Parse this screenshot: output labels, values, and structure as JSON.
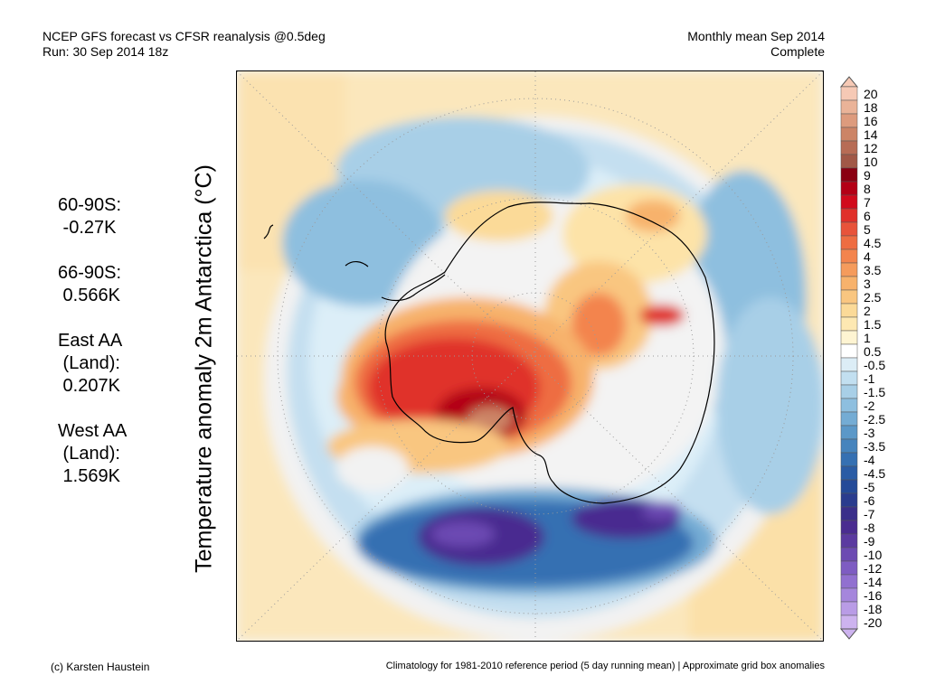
{
  "header": {
    "line1": "NCEP GFS forecast vs CFSR reanalysis @0.5deg",
    "line2": "Run: 30 Sep 2014 18z",
    "right1": "Monthly mean Sep 2014",
    "right2": "Complete"
  },
  "stats": [
    {
      "label": "60-90S:",
      "value": " -0.27K"
    },
    {
      "label": "66-90S:",
      "value": " 0.566K"
    },
    {
      "label": "East AA",
      "label2": " (Land):",
      "value": " 0.207K"
    },
    {
      "label": "West AA",
      "label2": " (Land):",
      "value": " 1.569K"
    }
  ],
  "chart_data": {
    "type": "heatmap",
    "projection": "south polar stereographic",
    "ylabel": "Temperature anomaly 2m Antarctica (°C)",
    "colorbar": {
      "labels": [
        "20",
        "18",
        "16",
        "14",
        "12",
        "10",
        "9",
        "8",
        "7",
        "6",
        "5",
        "4.5",
        "4",
        "3.5",
        "3",
        "2.5",
        "2",
        "1.5",
        "1",
        "0.5",
        "-0.5",
        "-1",
        "-1.5",
        "-2",
        "-2.5",
        "-3",
        "-3.5",
        "-4",
        "-4.5",
        "-5",
        "-6",
        "-7",
        "-8",
        "-9",
        "-10",
        "-12",
        "-14",
        "-16",
        "-18",
        "-20"
      ],
      "colors": [
        "#f6c9b5",
        "#eab398",
        "#dd9b7d",
        "#cc8466",
        "#b76c55",
        "#a15847",
        "#8a0012",
        "#b30016",
        "#d10a1c",
        "#e0302a",
        "#e8533a",
        "#ee6d42",
        "#f3844d",
        "#f59b5c",
        "#f7b26c",
        "#f9c680",
        "#fbda98",
        "#fde8b2",
        "#fef4d2",
        "#ffffff",
        "#dcedf6",
        "#c2dff0",
        "#a8cfe7",
        "#8ebfdf",
        "#74acd4",
        "#5b98c8",
        "#4684bd",
        "#3570b2",
        "#2a5ca5",
        "#244a98",
        "#2a3c8e",
        "#3a2f8a",
        "#4a2c90",
        "#5b3aa0",
        "#6c4ab2",
        "#7e5cc2",
        "#9170d0",
        "#a586dc",
        "#b99ce6",
        "#cdb3ef"
      ]
    }
  },
  "footer": {
    "left": "(c) Karsten Haustein",
    "right": "Climatology for 1981-2010 reference period (5 day running mean) | Approximate grid box anomalies"
  }
}
